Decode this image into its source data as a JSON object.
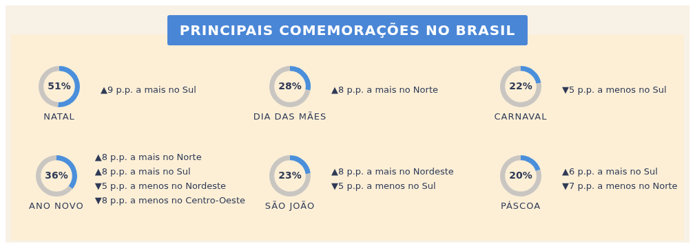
{
  "chart_data": [
    {
      "type": "other",
      "title": "PRINCIPAIS COMEMORAÇÕES NO BRASIL"
    },
    {
      "type": "donut",
      "title": "NATAL",
      "categories": [
        null,
        null
      ],
      "values": [
        51,
        49
      ],
      "colors": [
        "#4a8fdb",
        "#c9c6c2"
      ],
      "value_labels": [
        "51%",
        null
      ],
      "annotations": [
        "▲9 p.p. a mais no Sul"
      ]
    },
    {
      "type": "donut",
      "title": "DIA DAS MÃES",
      "categories": [
        null,
        null
      ],
      "values": [
        28,
        72
      ],
      "colors": [
        "#4a8fdb",
        "#c9c6c2"
      ],
      "value_labels": [
        "28%",
        null
      ],
      "annotations": [
        "▲8 p.p. a mais no Norte"
      ]
    },
    {
      "type": "donut",
      "title": "CARNAVAL",
      "categories": [
        null,
        null
      ],
      "values": [
        22,
        78
      ],
      "colors": [
        "#4a8fdb",
        "#c9c6c2"
      ],
      "value_labels": [
        "22%",
        null
      ],
      "annotations": [
        "▼5 p.p. a menos no Sul"
      ]
    },
    {
      "type": "donut",
      "title": "ANO NOVO",
      "categories": [
        null,
        null
      ],
      "values": [
        36,
        64
      ],
      "colors": [
        "#4a8fdb",
        "#c9c6c2"
      ],
      "value_labels": [
        "36%",
        null
      ],
      "annotations": [
        "▲8 p.p. a mais no Norte",
        "▲8 p.p. a mais no Sul",
        "▼5 p.p. a menos no Nordeste",
        "▼8 p.p. a menos no Centro-Oeste"
      ]
    },
    {
      "type": "donut",
      "title": "SÃO JOÃO",
      "categories": [
        null,
        null
      ],
      "values": [
        23,
        77
      ],
      "colors": [
        "#4a8fdb",
        "#c9c6c2"
      ],
      "value_labels": [
        "23%",
        null
      ],
      "annotations": [
        "▲8 p.p. a mais no Nordeste",
        "▼5 p.p. a menos no Sul"
      ]
    },
    {
      "type": "donut",
      "title": "PÁSCOA",
      "categories": [
        null,
        null
      ],
      "values": [
        20,
        80
      ],
      "colors": [
        "#4a8fdb",
        "#c9c6c2"
      ],
      "value_labels": [
        "20%",
        null
      ],
      "annotations": [
        "▲6 p.p. a mais no Sul",
        "▼7 p.p. a menos no Norte"
      ]
    }
  ]
}
